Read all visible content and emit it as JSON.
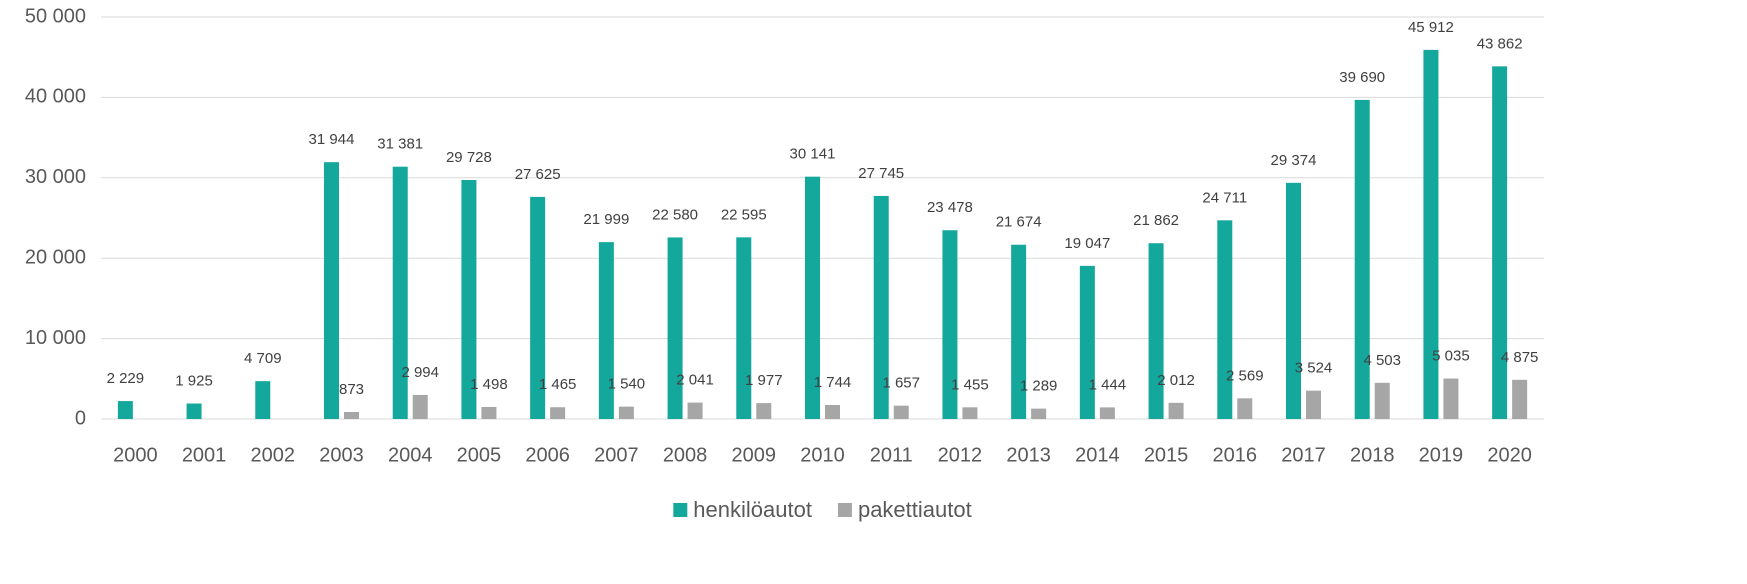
{
  "chart_data": {
    "type": "bar",
    "categories": [
      "2000",
      "2001",
      "2002",
      "2003",
      "2004",
      "2005",
      "2006",
      "2007",
      "2008",
      "2009",
      "2010",
      "2011",
      "2012",
      "2013",
      "2014",
      "2015",
      "2016",
      "2017",
      "2018",
      "2019",
      "2020"
    ],
    "series": [
      {
        "name": "henkilöautot",
        "color": "#14a89d",
        "values": [
          2229,
          1925,
          4709,
          31944,
          31381,
          29728,
          27625,
          21999,
          22580,
          22595,
          30141,
          27745,
          23478,
          21674,
          19047,
          21862,
          24711,
          29374,
          39690,
          45912,
          43862
        ],
        "value_labels": [
          "2 229",
          "1 925",
          "4 709",
          "31 944",
          "31 381",
          "29 728",
          "27 625",
          "21 999",
          "22 580",
          "22 595",
          "30 141",
          "27 745",
          "23 478",
          "21 674",
          "19 047",
          "21 862",
          "24 711",
          "29 374",
          "39 690",
          "45 912",
          "43 862"
        ]
      },
      {
        "name": "pakettiautot",
        "color": "#a6a6a6",
        "values": [
          null,
          null,
          null,
          873,
          2994,
          1498,
          1465,
          1540,
          2041,
          1977,
          1744,
          1657,
          1455,
          1289,
          1444,
          2012,
          2569,
          3524,
          4503,
          5035,
          4875
        ],
        "value_labels": [
          null,
          null,
          null,
          "873",
          "2 994",
          "1 498",
          "1 465",
          "1 540",
          "2 041",
          "1 977",
          "1 744",
          "1 657",
          "1 455",
          "1 289",
          "1 444",
          "2 012",
          "2 569",
          "3 524",
          "4 503",
          "5 035",
          "4 875"
        ]
      }
    ],
    "ylim": [
      0,
      50000
    ],
    "yticks": [
      0,
      {
        "value": 10000,
        "label": "10 000"
      },
      {
        "value": 20000,
        "label": "20 000"
      },
      {
        "value": 30000,
        "label": "30 000"
      },
      {
        "value": 40000,
        "label": "40 000"
      },
      {
        "value": 50000,
        "label": "50 000"
      }
    ],
    "grid": true,
    "legend": "bottom"
  }
}
